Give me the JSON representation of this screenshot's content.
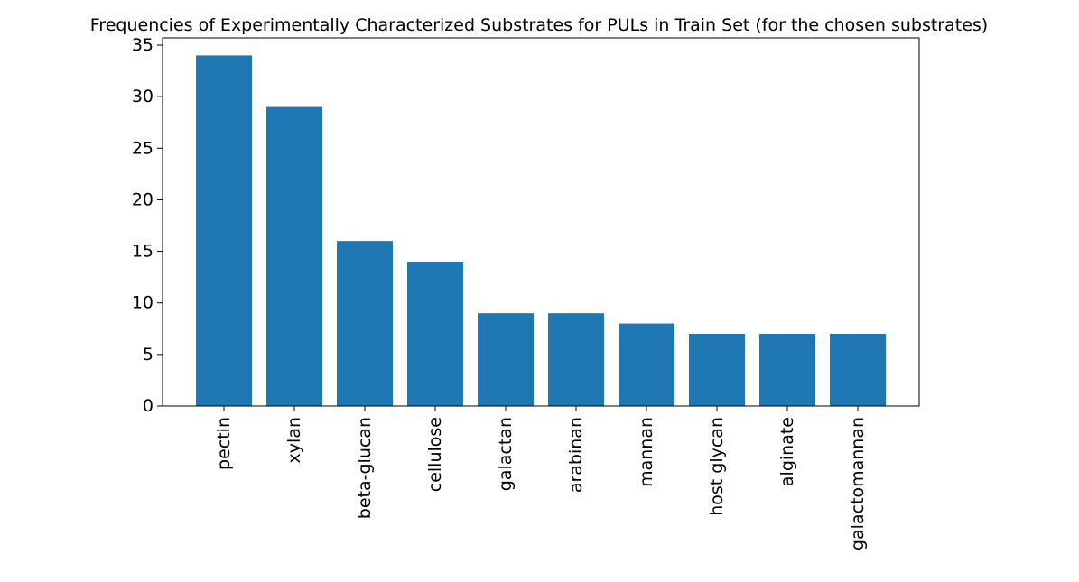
{
  "chart_data": {
    "type": "bar",
    "title": "Frequencies of Experimentally Characterized Substrates for PULs in Train Set (for the chosen substrates)",
    "xlabel": "",
    "ylabel": "",
    "categories": [
      "pectin",
      "xylan",
      "beta-glucan",
      "cellulose",
      "galactan",
      "arabinan",
      "mannan",
      "host glycan",
      "alginate",
      "galactomannan"
    ],
    "values": [
      34,
      29,
      16,
      14,
      9,
      9,
      8,
      7,
      7,
      7
    ],
    "ylim": [
      0,
      35.7
    ],
    "yticks": [
      0,
      5,
      10,
      15,
      20,
      25,
      30,
      35
    ],
    "bar_color": "#1f77b4",
    "grid": false,
    "legend": "none"
  }
}
